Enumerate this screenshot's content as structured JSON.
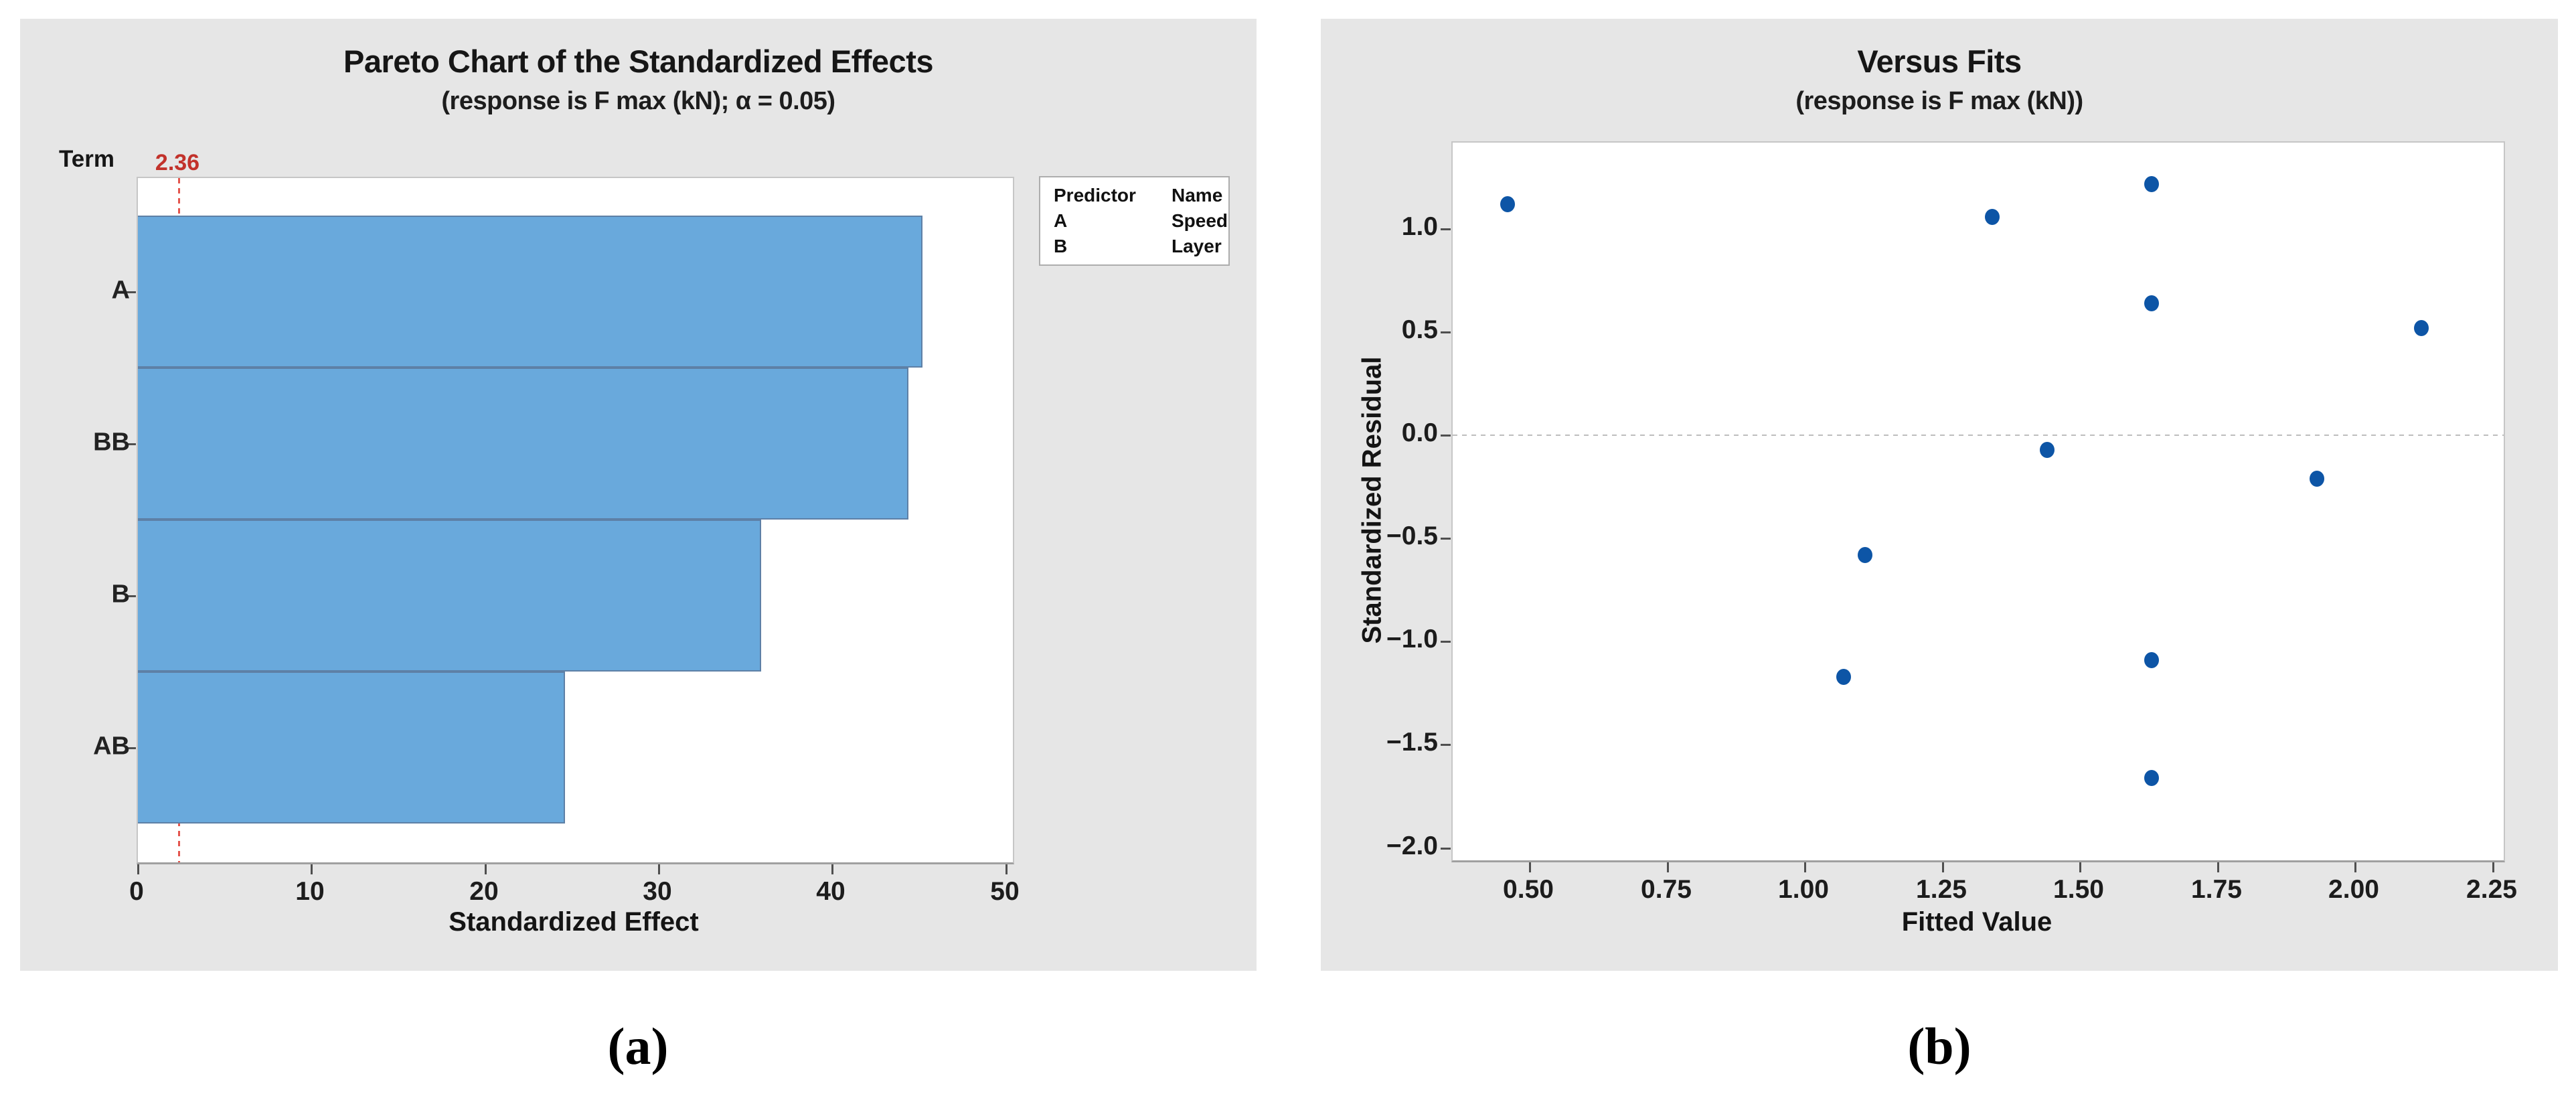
{
  "figure_labels": {
    "a": "(a)",
    "b": "(b)"
  },
  "colors": {
    "panel_bg": "#E6E6E6",
    "plot_bg": "#FFFFFF",
    "bar_fill": "#69A9DC",
    "bar_border": "#5E80A6",
    "reference_text_red": "#C2322B",
    "reference_line_red": "#E4564E",
    "point_blue": "#0D55A6",
    "zero_line_gray": "#BDBDBD"
  },
  "chart_data": [
    {
      "type": "bar",
      "orientation": "horizontal",
      "title": "Pareto Chart of the Standardized Effects",
      "subtitle": "(response is F max (kN); α = 0.05)",
      "term_axis_label": "Term",
      "xlabel": "Standardized Effect",
      "categories": [
        "A",
        "BB",
        "B",
        "AB"
      ],
      "values": [
        45.2,
        44.4,
        35.9,
        24.6
      ],
      "xlim": [
        0,
        50.4
      ],
      "xticks": [
        {
          "v": 0,
          "label": "0"
        },
        {
          "v": 10,
          "label": "10"
        },
        {
          "v": 20,
          "label": "20"
        },
        {
          "v": 30,
          "label": "30"
        },
        {
          "v": 40,
          "label": "40"
        },
        {
          "v": 50,
          "label": "50"
        }
      ],
      "reference_line": {
        "value": 2.36,
        "label": "2.36"
      },
      "legend": {
        "headers": [
          "Predictor",
          "Name"
        ],
        "rows": [
          [
            "A",
            "Speed"
          ],
          [
            "B",
            "Layer"
          ]
        ]
      },
      "grid": false,
      "legend_position": "right-outside"
    },
    {
      "type": "scatter",
      "title": "Versus Fits",
      "subtitle": "(response is F max (kN))",
      "xlabel": "Fitted Value",
      "ylabel": "Standardized Residual",
      "xlim": [
        0.36,
        2.27
      ],
      "ylim": [
        -2.06,
        1.42
      ],
      "xticks": [
        {
          "v": 0.5,
          "label": "0.50"
        },
        {
          "v": 0.75,
          "label": "0.75"
        },
        {
          "v": 1.0,
          "label": "1.00"
        },
        {
          "v": 1.25,
          "label": "1.25"
        },
        {
          "v": 1.5,
          "label": "1.50"
        },
        {
          "v": 1.75,
          "label": "1.75"
        },
        {
          "v": 2.0,
          "label": "2.00"
        },
        {
          "v": 2.25,
          "label": "2.25"
        }
      ],
      "yticks": [
        {
          "v": 1.0,
          "label": "1.0"
        },
        {
          "v": 0.5,
          "label": "0.5"
        },
        {
          "v": 0.0,
          "label": "0.0"
        },
        {
          "v": -0.5,
          "label": "−0.5"
        },
        {
          "v": -1.0,
          "label": "−1.0"
        },
        {
          "v": -1.5,
          "label": "−1.5"
        },
        {
          "v": -2.0,
          "label": "−2.0"
        }
      ],
      "zero_reference_line": 0,
      "points": [
        {
          "x": 0.46,
          "y": 1.12
        },
        {
          "x": 1.34,
          "y": 1.06
        },
        {
          "x": 1.63,
          "y": 1.22
        },
        {
          "x": 1.63,
          "y": 0.64
        },
        {
          "x": 2.12,
          "y": 0.52
        },
        {
          "x": 1.44,
          "y": -0.07
        },
        {
          "x": 1.93,
          "y": -0.21
        },
        {
          "x": 1.11,
          "y": -0.58
        },
        {
          "x": 1.63,
          "y": -1.09
        },
        {
          "x": 1.07,
          "y": -1.17
        },
        {
          "x": 1.63,
          "y": -1.66
        }
      ],
      "grid": false
    }
  ]
}
